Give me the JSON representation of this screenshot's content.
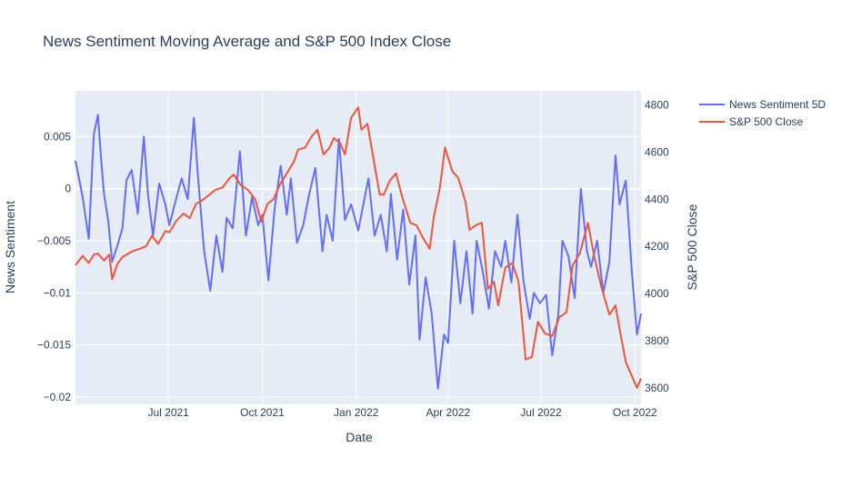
{
  "chart_data": {
    "type": "line",
    "title": "News Sentiment Moving Average and S&P 500 Index Close",
    "xlabel": "Date",
    "ylabel_left": "News Sentiment",
    "ylabel_right": "S&P 500 Close",
    "x_range": [
      "2021-04-01",
      "2022-10-07"
    ],
    "x_ticks": [
      {
        "label": "Jul 2021",
        "date": "2021-07-01"
      },
      {
        "label": "Oct 2021",
        "date": "2021-10-01"
      },
      {
        "label": "Jan 2022",
        "date": "2022-01-01"
      },
      {
        "label": "Apr 2022",
        "date": "2022-04-01"
      },
      {
        "label": "Jul 2022",
        "date": "2022-07-01"
      },
      {
        "label": "Oct 2022",
        "date": "2022-10-01"
      }
    ],
    "ylim_left": [
      -0.0207,
      0.0094
    ],
    "y_ticks_left": [
      {
        "label": "0.005",
        "value": 0.005
      },
      {
        "label": "0",
        "value": 0
      },
      {
        "label": "−0.005",
        "value": -0.005
      },
      {
        "label": "−0.01",
        "value": -0.01
      },
      {
        "label": "−0.015",
        "value": -0.015
      },
      {
        "label": "−0.02",
        "value": -0.02
      }
    ],
    "ylim_right": [
      3530,
      4860
    ],
    "y_ticks_right": [
      {
        "label": "4800",
        "value": 4800
      },
      {
        "label": "4600",
        "value": 4600
      },
      {
        "label": "4400",
        "value": 4400
      },
      {
        "label": "4200",
        "value": 4200
      },
      {
        "label": "4000",
        "value": 4000
      },
      {
        "label": "3800",
        "value": 3800
      },
      {
        "label": "3600",
        "value": 3600
      }
    ],
    "grid": true,
    "legend_position": "top-right",
    "series": [
      {
        "name": "News Sentiment 5D",
        "color": "#636efa",
        "axis": "left",
        "x": [
          "2021-04-01",
          "2021-04-08",
          "2021-04-14",
          "2021-04-19",
          "2021-04-23",
          "2021-04-26",
          "2021-04-29",
          "2021-05-03",
          "2021-05-07",
          "2021-05-12",
          "2021-05-17",
          "2021-05-21",
          "2021-05-26",
          "2021-06-01",
          "2021-06-07",
          "2021-06-11",
          "2021-06-16",
          "2021-06-22",
          "2021-06-28",
          "2021-07-02",
          "2021-07-08",
          "2021-07-14",
          "2021-07-20",
          "2021-07-26",
          "2021-07-30",
          "2021-08-05",
          "2021-08-11",
          "2021-08-17",
          "2021-08-23",
          "2021-08-27",
          "2021-09-02",
          "2021-09-09",
          "2021-09-15",
          "2021-09-21",
          "2021-09-27",
          "2021-10-01",
          "2021-10-07",
          "2021-10-13",
          "2021-10-19",
          "2021-10-25",
          "2021-10-29",
          "2021-11-04",
          "2021-11-10",
          "2021-11-16",
          "2021-11-22",
          "2021-11-29",
          "2021-12-03",
          "2021-12-09",
          "2021-12-15",
          "2021-12-21",
          "2021-12-27",
          "2022-01-03",
          "2022-01-07",
          "2022-01-13",
          "2022-01-19",
          "2022-01-25",
          "2022-01-31",
          "2022-02-04",
          "2022-02-10",
          "2022-02-16",
          "2022-02-22",
          "2022-02-28",
          "2022-03-04",
          "2022-03-10",
          "2022-03-16",
          "2022-03-22",
          "2022-03-28",
          "2022-04-01",
          "2022-04-07",
          "2022-04-13",
          "2022-04-19",
          "2022-04-25",
          "2022-04-29",
          "2022-05-05",
          "2022-05-11",
          "2022-05-17",
          "2022-05-23",
          "2022-05-27",
          "2022-06-02",
          "2022-06-08",
          "2022-06-14",
          "2022-06-20",
          "2022-06-24",
          "2022-06-30",
          "2022-07-06",
          "2022-07-12",
          "2022-07-18",
          "2022-07-22",
          "2022-07-28",
          "2022-08-03",
          "2022-08-09",
          "2022-08-15",
          "2022-08-19",
          "2022-08-25",
          "2022-08-31",
          "2022-09-06",
          "2022-09-12",
          "2022-09-16",
          "2022-09-22",
          "2022-09-28",
          "2022-10-03",
          "2022-10-07"
        ],
        "values": [
          0.0027,
          -0.0008,
          -0.0048,
          0.0052,
          0.0071,
          0.003,
          -0.0005,
          -0.003,
          -0.007,
          -0.0055,
          -0.0038,
          0.0008,
          0.0018,
          -0.0024,
          0.005,
          -0.0005,
          -0.0045,
          0.0005,
          -0.0015,
          -0.0035,
          -0.0012,
          0.001,
          -0.001,
          0.0068,
          0.0012,
          -0.006,
          -0.0098,
          -0.0045,
          -0.008,
          -0.0028,
          -0.0038,
          0.0036,
          -0.0045,
          -0.0008,
          -0.0035,
          -0.0025,
          -0.0088,
          -0.002,
          0.0022,
          -0.0025,
          0.001,
          -0.0052,
          -0.0035,
          -0.0005,
          0.002,
          -0.006,
          -0.0025,
          -0.005,
          0.0048,
          -0.003,
          -0.0015,
          -0.004,
          -0.002,
          0.001,
          -0.0045,
          -0.0025,
          -0.006,
          -0.0005,
          -0.0068,
          -0.002,
          -0.0092,
          -0.0045,
          -0.0145,
          -0.0085,
          -0.012,
          -0.0192,
          -0.014,
          -0.0148,
          -0.005,
          -0.011,
          -0.006,
          -0.012,
          -0.005,
          -0.008,
          -0.0115,
          -0.006,
          -0.0075,
          -0.005,
          -0.009,
          -0.0025,
          -0.009,
          -0.0125,
          -0.01,
          -0.011,
          -0.0102,
          -0.016,
          -0.012,
          -0.005,
          -0.0065,
          -0.0105,
          0.0,
          -0.006,
          -0.0075,
          -0.005,
          -0.01,
          -0.007,
          0.0032,
          -0.0015,
          0.0008,
          -0.008,
          -0.014,
          -0.012
        ]
      },
      {
        "name": "S&P 500 Close",
        "color": "#ef553b",
        "axis": "right",
        "x": [
          "2021-04-01",
          "2021-04-08",
          "2021-04-14",
          "2021-04-19",
          "2021-04-23",
          "2021-04-29",
          "2021-05-04",
          "2021-05-07",
          "2021-05-12",
          "2021-05-17",
          "2021-05-21",
          "2021-05-27",
          "2021-06-03",
          "2021-06-09",
          "2021-06-15",
          "2021-06-21",
          "2021-06-28",
          "2021-07-02",
          "2021-07-09",
          "2021-07-16",
          "2021-07-22",
          "2021-07-28",
          "2021-08-03",
          "2021-08-09",
          "2021-08-16",
          "2021-08-23",
          "2021-08-30",
          "2021-09-03",
          "2021-09-10",
          "2021-09-17",
          "2021-09-24",
          "2021-09-30",
          "2021-10-06",
          "2021-10-12",
          "2021-10-18",
          "2021-10-25",
          "2021-11-01",
          "2021-11-05",
          "2021-11-12",
          "2021-11-18",
          "2021-11-24",
          "2021-11-30",
          "2021-12-06",
          "2021-12-10",
          "2021-12-16",
          "2021-12-21",
          "2021-12-27",
          "2022-01-03",
          "2022-01-06",
          "2022-01-12",
          "2022-01-18",
          "2022-01-24",
          "2022-01-28",
          "2022-02-03",
          "2022-02-09",
          "2022-02-15",
          "2022-02-23",
          "2022-03-01",
          "2022-03-07",
          "2022-03-14",
          "2022-03-18",
          "2022-03-24",
          "2022-03-29",
          "2022-04-05",
          "2022-04-11",
          "2022-04-18",
          "2022-04-22",
          "2022-04-28",
          "2022-05-04",
          "2022-05-10",
          "2022-05-16",
          "2022-05-20",
          "2022-05-27",
          "2022-06-03",
          "2022-06-09",
          "2022-06-16",
          "2022-06-22",
          "2022-06-28",
          "2022-07-05",
          "2022-07-12",
          "2022-07-19",
          "2022-07-26",
          "2022-08-01",
          "2022-08-08",
          "2022-08-16",
          "2022-08-22",
          "2022-08-29",
          "2022-09-06",
          "2022-09-12",
          "2022-09-16",
          "2022-09-22",
          "2022-09-28",
          "2022-10-03",
          "2022-10-07"
        ],
        "values": [
          4120,
          4160,
          4130,
          4165,
          4170,
          4140,
          4165,
          4060,
          4125,
          4155,
          4165,
          4180,
          4190,
          4200,
          4245,
          4210,
          4265,
          4260,
          4310,
          4340,
          4320,
          4380,
          4395,
          4415,
          4440,
          4450,
          4490,
          4505,
          4460,
          4440,
          4400,
          4305,
          4380,
          4400,
          4460,
          4510,
          4560,
          4610,
          4620,
          4665,
          4695,
          4590,
          4620,
          4660,
          4640,
          4590,
          4745,
          4790,
          4695,
          4720,
          4570,
          4420,
          4420,
          4480,
          4510,
          4410,
          4300,
          4290,
          4240,
          4190,
          4325,
          4450,
          4620,
          4520,
          4490,
          4390,
          4270,
          4290,
          4300,
          4020,
          4050,
          3950,
          4110,
          4130,
          4050,
          3720,
          3730,
          3880,
          3830,
          3820,
          3900,
          3920,
          4120,
          4170,
          4300,
          4160,
          4030,
          3910,
          3950,
          3850,
          3710,
          3650,
          3600,
          3640
        ]
      }
    ]
  }
}
